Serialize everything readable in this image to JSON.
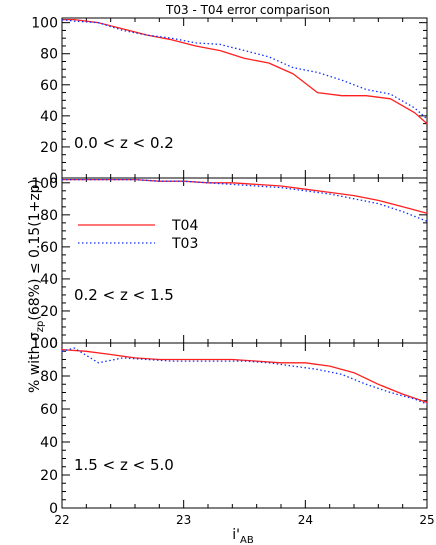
{
  "chart_data": [
    {
      "type": "line",
      "title": "T03 - T04 error comparison",
      "xlabel": "i'AB",
      "ylabel": "% with σzp(68%) ≤ 0.15(1+zp)",
      "annotation": "0.0 < z < 0.2",
      "xlim": [
        22,
        25
      ],
      "ylim": [
        0,
        103
      ],
      "yticks": [
        "0",
        "20",
        "40",
        "60",
        "80",
        "100"
      ],
      "legend": null,
      "grid": false,
      "series": [
        {
          "name": "T04",
          "color": "#ff2020",
          "style": "solid",
          "x": [
            22.0,
            22.1,
            22.3,
            22.5,
            22.7,
            22.9,
            23.1,
            23.3,
            23.5,
            23.7,
            23.9,
            24.1,
            24.3,
            24.5,
            24.7,
            24.9,
            25.0
          ],
          "y": [
            102,
            102,
            100,
            96,
            92,
            89,
            85,
            82,
            77,
            74,
            67,
            55,
            53,
            53,
            51,
            42,
            35
          ]
        },
        {
          "name": "T03",
          "color": "#1030ff",
          "style": "dotted",
          "x": [
            22.0,
            22.1,
            22.3,
            22.5,
            22.7,
            22.9,
            23.1,
            23.3,
            23.5,
            23.7,
            23.9,
            24.1,
            24.3,
            24.5,
            24.7,
            24.9,
            25.0
          ],
          "y": [
            102,
            101,
            100,
            95,
            92,
            90,
            87,
            86,
            82,
            78,
            71,
            68,
            63,
            57,
            54,
            45,
            38
          ]
        }
      ]
    },
    {
      "type": "line",
      "annotation": "0.2 < z < 1.5",
      "xlim": [
        22,
        25
      ],
      "ylim": [
        0,
        103
      ],
      "yticks": [
        "0",
        "20",
        "40",
        "60",
        "80",
        "100"
      ],
      "legend": "upper-left",
      "grid": false,
      "series": [
        {
          "name": "T04",
          "color": "#ff2020",
          "style": "solid",
          "x": [
            22.0,
            22.2,
            22.4,
            22.6,
            22.8,
            23.0,
            23.2,
            23.4,
            23.6,
            23.8,
            24.0,
            24.2,
            24.4,
            24.6,
            24.8,
            25.0
          ],
          "y": [
            102,
            102,
            102,
            102,
            101,
            101,
            100,
            100,
            99,
            98,
            96,
            94,
            92,
            89,
            85,
            81
          ]
        },
        {
          "name": "T03",
          "color": "#1030ff",
          "style": "dotted",
          "x": [
            22.0,
            22.2,
            22.4,
            22.6,
            22.8,
            23.0,
            23.2,
            23.4,
            23.6,
            23.8,
            24.0,
            24.2,
            24.4,
            24.6,
            24.8,
            25.0
          ],
          "y": [
            102,
            102,
            102,
            102,
            101,
            101,
            100,
            99,
            98,
            97,
            95,
            93,
            90,
            87,
            82,
            76
          ]
        }
      ]
    },
    {
      "type": "line",
      "annotation": "1.5 < z < 5.0",
      "xlim": [
        22,
        25
      ],
      "ylim": [
        0,
        100
      ],
      "yticks": [
        "0",
        "20",
        "40",
        "60",
        "80",
        "100"
      ],
      "xticks": [
        "22",
        "23",
        "24",
        "25"
      ],
      "legend": null,
      "grid": false,
      "series": [
        {
          "name": "T04",
          "color": "#ff2020",
          "style": "solid",
          "x": [
            22.0,
            22.2,
            22.4,
            22.6,
            22.8,
            23.0,
            23.2,
            23.4,
            23.6,
            23.8,
            24.0,
            24.2,
            24.4,
            24.6,
            24.8,
            25.0
          ],
          "y": [
            96,
            95,
            93,
            91,
            90,
            90,
            90,
            90,
            89,
            88,
            88,
            86,
            82,
            75,
            69,
            64
          ]
        },
        {
          "name": "T03",
          "color": "#1030ff",
          "style": "dotted",
          "x": [
            22.0,
            22.1,
            22.3,
            22.5,
            22.7,
            22.9,
            23.1,
            23.3,
            23.5,
            23.7,
            23.9,
            24.1,
            24.3,
            24.5,
            24.7,
            24.9,
            25.0
          ],
          "y": [
            95,
            97,
            88,
            91,
            90,
            89,
            89,
            89,
            89,
            88,
            86,
            84,
            81,
            75,
            70,
            66,
            63
          ]
        }
      ]
    }
  ]
}
